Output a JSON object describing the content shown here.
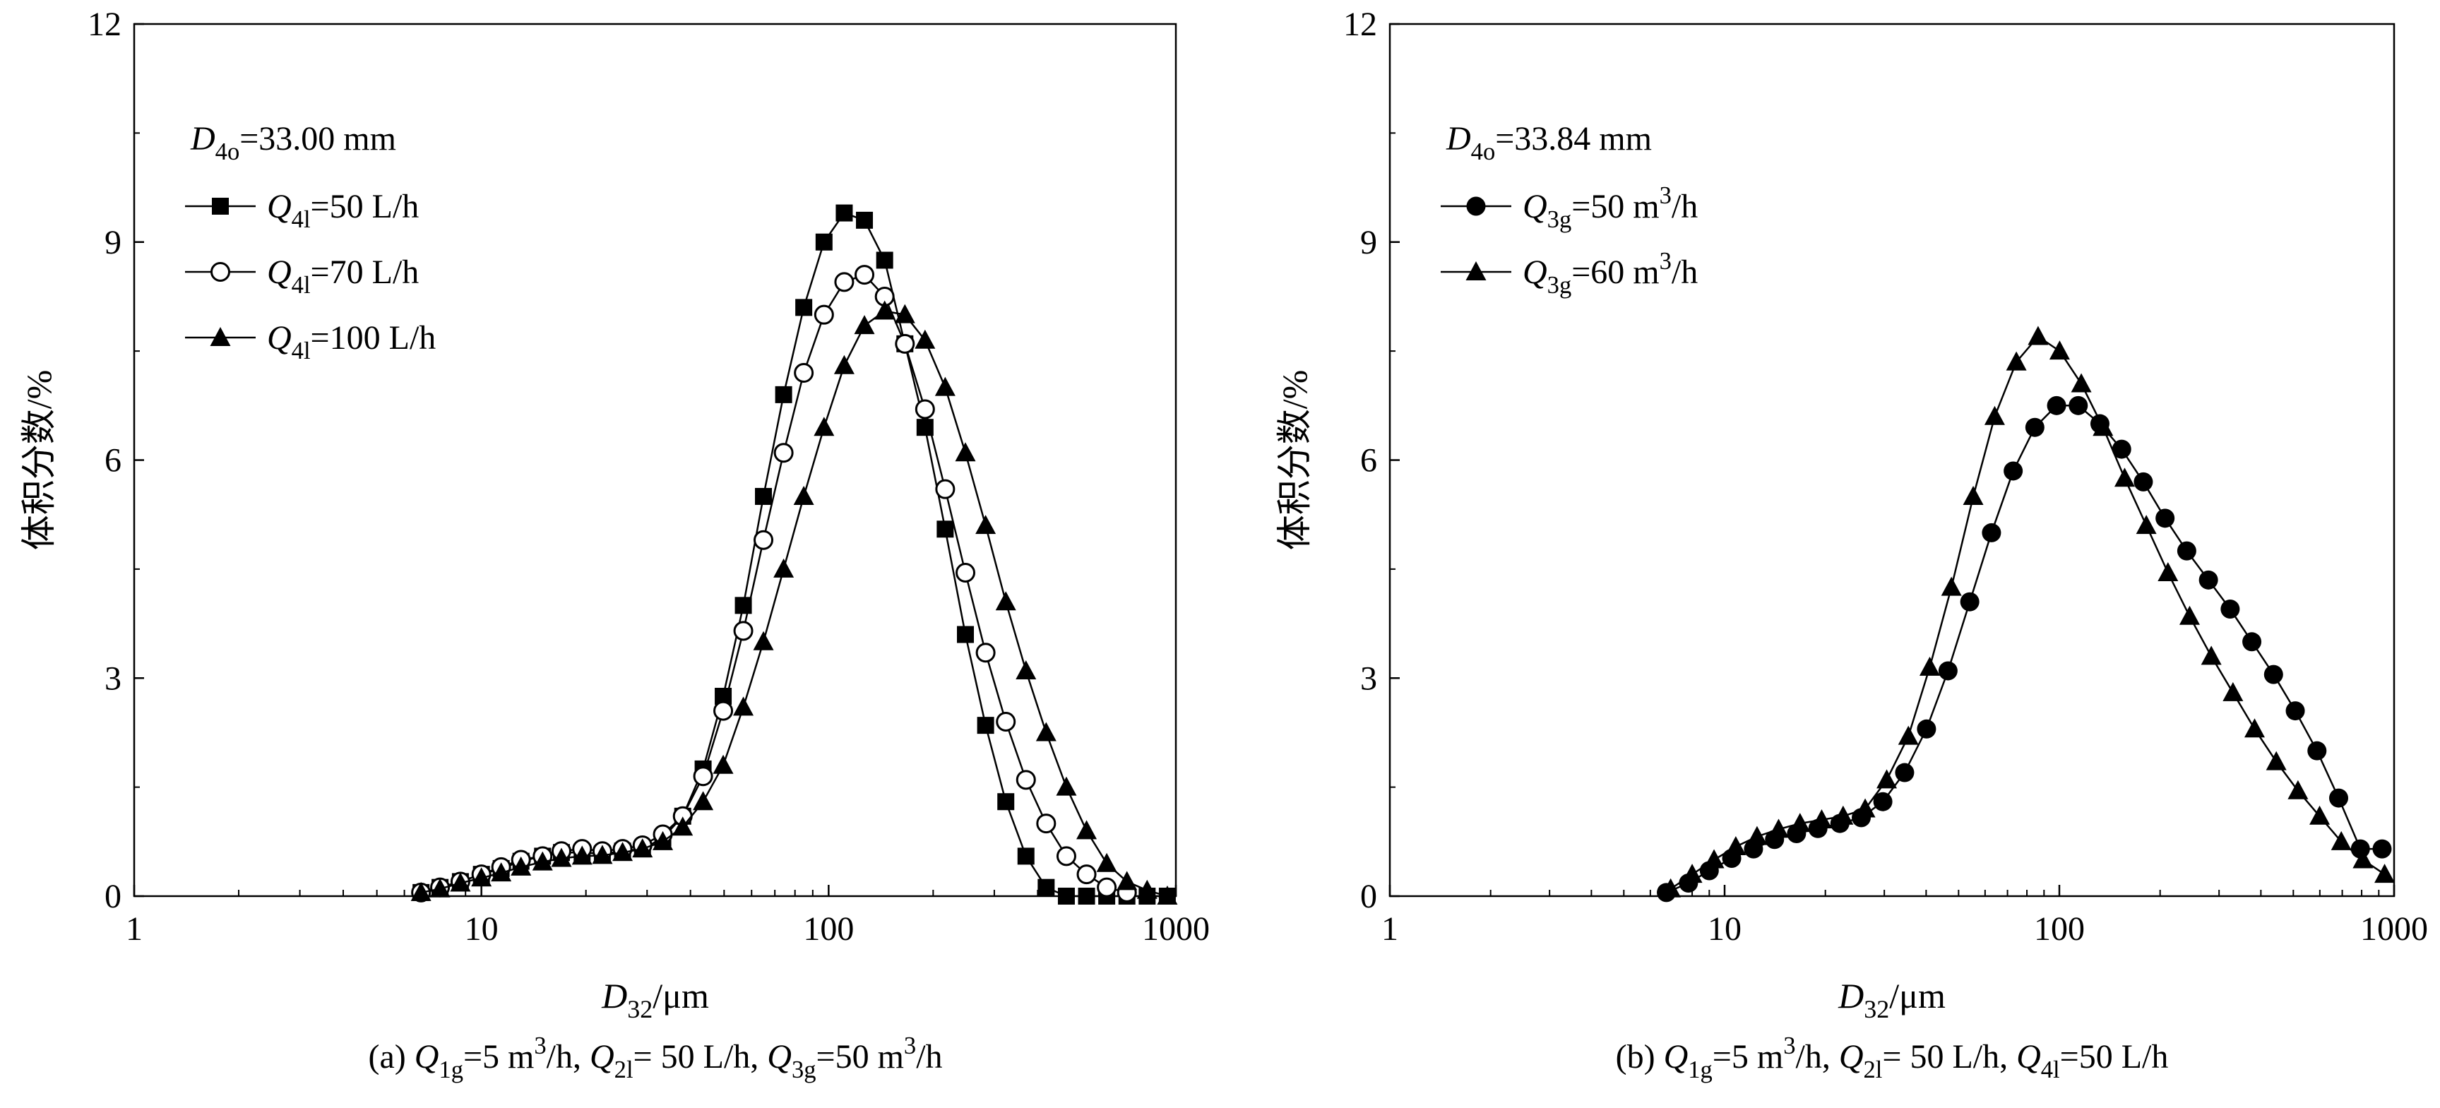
{
  "chart_data": [
    {
      "type": "scatter",
      "panel": "(a)",
      "caption": {
        "prefix": "(a) ",
        "parts": [
          {
            "t": "Q",
            "i": true
          },
          {
            "t": "1g",
            "sub": true
          },
          {
            "t": "=5 m"
          },
          {
            "t": "3",
            "sup": true
          },
          {
            "t": "/h, "
          },
          {
            "t": "Q",
            "i": true
          },
          {
            "t": "2l",
            "sub": true
          },
          {
            "t": "= 50 L/h, "
          },
          {
            "t": "Q",
            "i": true
          },
          {
            "t": "3g",
            "sub": true
          },
          {
            "t": "=50 m"
          },
          {
            "t": "3",
            "sup": true
          },
          {
            "t": "/h"
          }
        ]
      },
      "annotation": [
        {
          "t": "D",
          "i": true
        },
        {
          "t": "4o",
          "sub": true
        },
        {
          "t": "=33.00 mm"
        }
      ],
      "xlabel": [
        {
          "t": "D",
          "i": true
        },
        {
          "t": "32",
          "sub": true
        },
        {
          "t": "/μm"
        }
      ],
      "ylabel": "体积分数/%",
      "xscale": "log",
      "xlim": [
        1,
        1000
      ],
      "ylim": [
        0,
        12
      ],
      "xticks": [
        1,
        10,
        100,
        1000
      ],
      "xtick_labels": [
        "1",
        "10",
        "100",
        "1000"
      ],
      "yticks": [
        0,
        3,
        6,
        9,
        12
      ],
      "ytick_labels": [
        "0",
        "3",
        "6",
        "9",
        "12"
      ],
      "legend_position": "top-left",
      "series": [
        {
          "legend": [
            {
              "t": "Q",
              "i": true
            },
            {
              "t": "4l",
              "sub": true
            },
            {
              "t": "=50 L/h"
            }
          ],
          "marker": "square-filled",
          "x": [
            6.7,
            7.6,
            8.7,
            10.0,
            11.4,
            13.0,
            15.0,
            17.0,
            19.5,
            22.3,
            25.5,
            29.1,
            33.3,
            38.0,
            43.5,
            49.7,
            56.8,
            64.9,
            74.2,
            84.8,
            97.0,
            110.9,
            126.8,
            145.0,
            165.8,
            189.5,
            216.6,
            247.7,
            283.2,
            323.8,
            370.1,
            423.1,
            483.8,
            553.1,
            632.3,
            722.9,
            826.5,
            945.0
          ],
          "y": [
            0.05,
            0.12,
            0.2,
            0.3,
            0.38,
            0.48,
            0.55,
            0.6,
            0.6,
            0.58,
            0.62,
            0.65,
            0.8,
            1.1,
            1.75,
            2.75,
            4.0,
            5.5,
            6.9,
            8.1,
            9.0,
            9.4,
            9.3,
            8.75,
            7.6,
            6.45,
            5.05,
            3.6,
            2.35,
            1.3,
            0.55,
            0.12,
            0.0,
            0.0,
            0.0,
            0.0,
            0.0,
            0.0
          ]
        },
        {
          "legend": [
            {
              "t": "Q",
              "i": true
            },
            {
              "t": "4l",
              "sub": true
            },
            {
              "t": "=70 L/h"
            }
          ],
          "marker": "circle-open",
          "x": [
            6.7,
            7.6,
            8.7,
            10.0,
            11.4,
            13.0,
            15.0,
            17.0,
            19.5,
            22.3,
            25.5,
            29.1,
            33.3,
            38.0,
            43.5,
            49.7,
            56.8,
            64.9,
            74.2,
            84.8,
            97.0,
            110.9,
            126.8,
            145.0,
            165.8,
            189.5,
            216.6,
            247.7,
            283.2,
            323.8,
            370.1,
            423.1,
            483.8,
            553.1,
            632.3,
            722.9
          ],
          "y": [
            0.05,
            0.12,
            0.2,
            0.3,
            0.4,
            0.5,
            0.55,
            0.62,
            0.65,
            0.62,
            0.65,
            0.7,
            0.85,
            1.1,
            1.65,
            2.55,
            3.65,
            4.9,
            6.1,
            7.2,
            8.0,
            8.45,
            8.55,
            8.25,
            7.6,
            6.7,
            5.6,
            4.45,
            3.35,
            2.4,
            1.6,
            1.0,
            0.55,
            0.3,
            0.12,
            0.05
          ]
        },
        {
          "legend": [
            {
              "t": "Q",
              "i": true
            },
            {
              "t": "4l",
              "sub": true
            },
            {
              "t": "=100 L/h"
            }
          ],
          "marker": "triangle-filled",
          "x": [
            6.7,
            7.6,
            8.7,
            10.0,
            11.4,
            13.0,
            15.0,
            17.0,
            19.5,
            22.3,
            25.5,
            29.1,
            33.3,
            38.0,
            43.5,
            49.7,
            56.8,
            64.9,
            74.2,
            84.8,
            97.0,
            110.9,
            126.8,
            145.0,
            165.8,
            189.5,
            216.6,
            247.7,
            283.2,
            323.8,
            370.1,
            423.1,
            483.8,
            553.1,
            632.3,
            722.9,
            826.5,
            945.0
          ],
          "y": [
            0.05,
            0.1,
            0.18,
            0.25,
            0.32,
            0.4,
            0.47,
            0.52,
            0.55,
            0.56,
            0.6,
            0.65,
            0.75,
            0.95,
            1.3,
            1.8,
            2.6,
            3.5,
            4.5,
            5.5,
            6.45,
            7.3,
            7.85,
            8.05,
            8.0,
            7.65,
            7.0,
            6.1,
            5.1,
            4.05,
            3.1,
            2.25,
            1.5,
            0.9,
            0.45,
            0.2,
            0.08,
            0.0
          ]
        }
      ]
    },
    {
      "type": "scatter",
      "panel": "(b)",
      "caption": {
        "prefix": "(b) ",
        "parts": [
          {
            "t": "Q",
            "i": true
          },
          {
            "t": "1g",
            "sub": true
          },
          {
            "t": "=5 m"
          },
          {
            "t": "3",
            "sup": true
          },
          {
            "t": "/h, "
          },
          {
            "t": "Q",
            "i": true
          },
          {
            "t": "2l",
            "sub": true
          },
          {
            "t": "= 50 L/h, "
          },
          {
            "t": "Q",
            "i": true
          },
          {
            "t": "4l",
            "sub": true
          },
          {
            "t": "=50 L/h"
          }
        ]
      },
      "annotation": [
        {
          "t": "D",
          "i": true
        },
        {
          "t": "4o",
          "sub": true
        },
        {
          "t": "=33.84 mm"
        }
      ],
      "xlabel": [
        {
          "t": "D",
          "i": true
        },
        {
          "t": "32",
          "sub": true
        },
        {
          "t": "/μm"
        }
      ],
      "ylabel": "体积分数/%",
      "xscale": "log",
      "xlim": [
        1,
        1000
      ],
      "ylim": [
        0,
        12
      ],
      "xticks": [
        1,
        10,
        100,
        1000
      ],
      "xtick_labels": [
        "1",
        "10",
        "100",
        "1000"
      ],
      "yticks": [
        0,
        3,
        6,
        9,
        12
      ],
      "ytick_labels": [
        "0",
        "3",
        "6",
        "9",
        "12"
      ],
      "legend_position": "top-left",
      "series": [
        {
          "legend": [
            {
              "t": "Q",
              "i": true
            },
            {
              "t": "3g",
              "sub": true
            },
            {
              "t": "=50 m"
            },
            {
              "t": "3",
              "sup": true
            },
            {
              "t": "/h"
            }
          ],
          "marker": "circle-filled",
          "x": [
            6.7,
            7.8,
            9.0,
            10.5,
            12.2,
            14.1,
            16.4,
            19.0,
            22.1,
            25.6,
            29.7,
            34.5,
            40.1,
            46.5,
            54.0,
            62.7,
            72.8,
            84.5,
            98.1,
            113.9,
            132.2,
            153.5,
            178.2,
            206.9,
            240.2,
            278.9,
            323.8,
            375.9,
            436.4,
            506.7,
            588.3,
            683.0,
            793.0,
            920.6
          ],
          "y": [
            0.05,
            0.18,
            0.35,
            0.52,
            0.65,
            0.78,
            0.86,
            0.93,
            1.0,
            1.08,
            1.3,
            1.7,
            2.3,
            3.1,
            4.05,
            5.0,
            5.85,
            6.45,
            6.75,
            6.75,
            6.5,
            6.15,
            5.7,
            5.2,
            4.75,
            4.35,
            3.95,
            3.5,
            3.05,
            2.55,
            2.0,
            1.35,
            0.65,
            0.65
          ]
        },
        {
          "legend": [
            {
              "t": "Q",
              "i": true
            },
            {
              "t": "3g",
              "sub": true
            },
            {
              "t": "=60 m"
            },
            {
              "t": "3",
              "sup": true
            },
            {
              "t": "/h"
            }
          ],
          "marker": "triangle-filled",
          "x": [
            6.9,
            8.0,
            9.3,
            10.8,
            12.5,
            14.5,
            16.8,
            19.5,
            22.6,
            26.3,
            30.5,
            35.4,
            41.0,
            47.6,
            55.3,
            64.1,
            74.4,
            86.4,
            100.2,
            116.3,
            135.0,
            156.7,
            181.9,
            211.1,
            245.0,
            284.4,
            330.1,
            383.1,
            444.7,
            516.2,
            599.1,
            695.4,
            807.1,
            936.8
          ],
          "y": [
            0.1,
            0.3,
            0.5,
            0.68,
            0.82,
            0.92,
            1.0,
            1.05,
            1.1,
            1.2,
            1.6,
            2.2,
            3.15,
            4.25,
            5.5,
            6.6,
            7.35,
            7.7,
            7.5,
            7.05,
            6.45,
            5.75,
            5.1,
            4.45,
            3.85,
            3.3,
            2.8,
            2.3,
            1.85,
            1.45,
            1.1,
            0.75,
            0.5,
            0.3
          ]
        }
      ]
    }
  ]
}
